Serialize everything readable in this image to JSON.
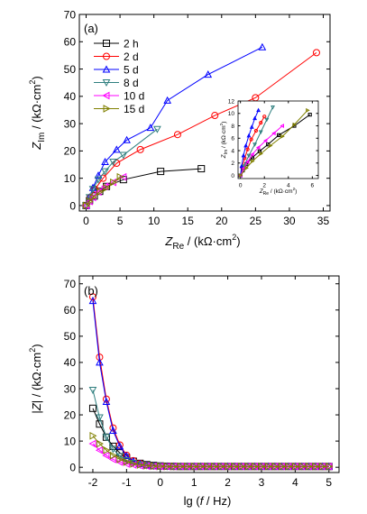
{
  "chart_data": [
    {
      "type": "scatter",
      "panel_label": "(a)",
      "xlabel": {
        "main": "Z",
        "sub": "Re",
        "unit": " / (kΩ·cm",
        "sup": "2",
        "close": ")"
      },
      "ylabel": {
        "main": "Z",
        "sub": "Im",
        "unit": " / (kΩ·cm",
        "sup": "2",
        "close": ")"
      },
      "xlim": [
        -1,
        36
      ],
      "ylim": [
        -2,
        70
      ],
      "xticks": [
        0,
        5,
        10,
        15,
        20,
        25,
        30,
        35
      ],
      "yticks": [
        0,
        10,
        20,
        30,
        40,
        50,
        60,
        70
      ],
      "legend_position": "top-left",
      "series": [
        {
          "name": "2 h",
          "color": "#000000",
          "marker": "square",
          "x": [
            0,
            0.5,
            1.2,
            2.0,
            3.0,
            5.5,
            11.0,
            17.0
          ],
          "y": [
            0,
            1.8,
            3.5,
            5.2,
            7.0,
            9.5,
            12.5,
            13.5
          ]
        },
        {
          "name": "2 d",
          "color": "#ff0000",
          "marker": "circle",
          "x": [
            0,
            0.6,
            1.3,
            2.5,
            4.5,
            8.0,
            13.5,
            19.0,
            25.0,
            34.0
          ],
          "y": [
            0,
            3.0,
            6.0,
            10.0,
            15.5,
            20.5,
            26.0,
            33.0,
            39.5,
            56.0
          ]
        },
        {
          "name": "5 d",
          "color": "#0000ff",
          "marker": "triangle-up",
          "x": [
            0,
            0.5,
            1.0,
            1.8,
            2.8,
            4.5,
            6.0,
            9.5,
            12.0,
            18.0,
            26.0
          ],
          "y": [
            0,
            3.0,
            6.5,
            11.0,
            16.0,
            20.5,
            24.0,
            28.5,
            38.5,
            48.0,
            58.0
          ]
        },
        {
          "name": "8 d",
          "color": "#2f7f7f",
          "marker": "triangle-down",
          "x": [
            0,
            0.5,
            1.0,
            1.8,
            2.8,
            4.0,
            5.5,
            10.5
          ],
          "y": [
            0,
            3.0,
            6.0,
            9.5,
            12.5,
            16.0,
            18.5,
            28.0
          ]
        },
        {
          "name": "10 d",
          "color": "#ff00ff",
          "marker": "triangle-left",
          "x": [
            0,
            0.5,
            1.0,
            1.8,
            2.8,
            4.0,
            5.5
          ],
          "y": [
            0,
            1.5,
            3.0,
            5.0,
            7.0,
            8.5,
            10.5
          ]
        },
        {
          "name": "15 d",
          "color": "#808000",
          "marker": "triangle-right",
          "x": [
            0,
            0.5,
            1.0,
            2.0,
            3.0,
            4.0,
            5.0
          ],
          "y": [
            0,
            1.5,
            3.0,
            5.0,
            6.5,
            8.5,
            10.5
          ]
        }
      ],
      "inset": {
        "xlabel": {
          "main": "Z",
          "sub": "Re",
          "unit": " / (kΩ·cm",
          "sup": "2",
          "close": ")"
        },
        "ylabel": {
          "main": "Z",
          "sub": "Im",
          "unit": " / (kΩ·cm",
          "sup": "2",
          "close": ")"
        },
        "xlim": [
          -0.2,
          6.5
        ],
        "ylim": [
          -0.5,
          12
        ],
        "xticks": [
          0,
          2,
          4,
          6
        ],
        "yticks": [
          0,
          2,
          4,
          6,
          8,
          10,
          12
        ],
        "series": [
          {
            "color": "#000000",
            "marker": "square",
            "x": [
              0,
              0.2,
              0.5,
              1.0,
              1.6,
              2.3,
              3.2,
              4.5,
              5.8
            ],
            "y": [
              0,
              0.8,
              1.8,
              2.9,
              3.9,
              5.0,
              6.5,
              8.0,
              9.8
            ]
          },
          {
            "color": "#ff0000",
            "marker": "circle",
            "x": [
              0,
              0.15,
              0.35,
              0.6,
              0.9,
              1.3,
              1.7,
              2.0
            ],
            "y": [
              0,
              1.2,
              2.8,
              4.2,
              5.8,
              7.2,
              8.5,
              9.5
            ]
          },
          {
            "color": "#0000ff",
            "marker": "triangle-up",
            "x": [
              0,
              0.1,
              0.25,
              0.45,
              0.7,
              0.95,
              1.2,
              1.5
            ],
            "y": [
              0,
              1.5,
              3.2,
              4.8,
              6.4,
              7.8,
              9.2,
              10.5
            ]
          },
          {
            "color": "#2f7f7f",
            "marker": "triangle-down",
            "x": [
              0,
              0.3,
              0.7,
              1.2,
              1.7,
              2.2,
              2.7
            ],
            "y": [
              0,
              1.5,
              3.2,
              5.0,
              7.0,
              9.0,
              11.0
            ]
          },
          {
            "color": "#ff00ff",
            "marker": "triangle-left",
            "x": [
              0,
              0.3,
              0.6,
              1.0,
              1.5,
              2.1,
              2.8,
              3.5
            ],
            "y": [
              0,
              1.2,
              2.2,
              3.4,
              4.5,
              5.6,
              6.8,
              8.0
            ]
          },
          {
            "color": "#808000",
            "marker": "triangle-right",
            "x": [
              0,
              0.5,
              1.0,
              1.7,
              2.5,
              3.5,
              4.5,
              5.6
            ],
            "y": [
              0,
              1.2,
              2.3,
              3.5,
              4.8,
              6.3,
              8.2,
              10.5
            ]
          }
        ]
      }
    },
    {
      "type": "line",
      "panel_label": "(b)",
      "xlabel": {
        "pre": "lg (",
        "ital": "f",
        "post": " / Hz)"
      },
      "ylabel": {
        "pre": "|",
        "ital": "Z",
        "post": "| / (kΩ·cm",
        "sup": "2",
        "close": ")"
      },
      "xlim": [
        -2.4,
        5.3
      ],
      "ylim": [
        -2,
        73
      ],
      "xticks": [
        -2,
        -1,
        0,
        1,
        2,
        3,
        4,
        5
      ],
      "yticks": [
        0,
        10,
        20,
        30,
        40,
        50,
        60,
        70
      ],
      "x": [
        -2.0,
        -1.8,
        -1.6,
        -1.4,
        -1.2,
        -1.0,
        -0.8,
        -0.6,
        -0.4,
        -0.2,
        0.0,
        0.2,
        0.4,
        0.6,
        0.8,
        1.0,
        1.2,
        1.4,
        1.6,
        1.8,
        2.0,
        2.2,
        2.4,
        2.6,
        2.8,
        3.0,
        3.2,
        3.4,
        3.6,
        3.8,
        4.0,
        4.2,
        4.4,
        4.6,
        4.8,
        5.0
      ],
      "series": [
        {
          "name": "2 h",
          "color": "#000000",
          "marker": "square",
          "values": [
            22.5,
            16.5,
            11.5,
            8.0,
            5.5,
            3.6,
            2.3,
            1.5,
            1.0,
            0.7,
            0.5,
            0.4,
            0.35,
            0.3,
            0.3,
            0.3,
            0.3,
            0.3,
            0.3,
            0.3,
            0.3,
            0.3,
            0.3,
            0.3,
            0.3,
            0.3,
            0.3,
            0.3,
            0.3,
            0.3,
            0.3,
            0.3,
            0.3,
            0.3,
            0.3,
            0.3
          ]
        },
        {
          "name": "2 d",
          "color": "#ff0000",
          "marker": "circle",
          "values": [
            65.0,
            42.0,
            26.0,
            15.0,
            8.5,
            4.6,
            2.5,
            1.4,
            0.8,
            0.5,
            0.4,
            0.35,
            0.3,
            0.3,
            0.3,
            0.3,
            0.3,
            0.3,
            0.3,
            0.3,
            0.3,
            0.3,
            0.3,
            0.3,
            0.3,
            0.3,
            0.3,
            0.3,
            0.3,
            0.3,
            0.3,
            0.3,
            0.3,
            0.3,
            0.3,
            0.3
          ]
        },
        {
          "name": "5 d",
          "color": "#0000ff",
          "marker": "triangle-up",
          "values": [
            63.5,
            40.0,
            25.0,
            14.0,
            8.0,
            4.3,
            2.3,
            1.3,
            0.8,
            0.5,
            0.4,
            0.35,
            0.3,
            0.3,
            0.3,
            0.3,
            0.3,
            0.3,
            0.3,
            0.3,
            0.3,
            0.3,
            0.3,
            0.3,
            0.3,
            0.3,
            0.3,
            0.3,
            0.3,
            0.3,
            0.3,
            0.3,
            0.3,
            0.3,
            0.3,
            0.3
          ]
        },
        {
          "name": "8 d",
          "color": "#2f7f7f",
          "marker": "triangle-down",
          "values": [
            29.5,
            19.0,
            11.5,
            7.0,
            4.2,
            2.6,
            1.6,
            1.0,
            0.7,
            0.5,
            0.4,
            0.35,
            0.3,
            0.3,
            0.3,
            0.3,
            0.3,
            0.3,
            0.3,
            0.3,
            0.3,
            0.3,
            0.3,
            0.3,
            0.3,
            0.3,
            0.3,
            0.3,
            0.3,
            0.3,
            0.3,
            0.3,
            0.3,
            0.3,
            0.3,
            0.3
          ]
        },
        {
          "name": "10 d",
          "color": "#ff00ff",
          "marker": "triangle-left",
          "values": [
            9.0,
            6.5,
            4.5,
            3.0,
            2.0,
            1.3,
            0.9,
            0.6,
            0.45,
            0.35,
            0.3,
            0.3,
            0.3,
            0.3,
            0.3,
            0.3,
            0.3,
            0.3,
            0.3,
            0.3,
            0.3,
            0.3,
            0.3,
            0.3,
            0.3,
            0.3,
            0.3,
            0.3,
            0.3,
            0.3,
            0.3,
            0.3,
            0.3,
            0.3,
            0.3,
            0.3
          ]
        },
        {
          "name": "15 d",
          "color": "#808000",
          "marker": "triangle-right",
          "values": [
            12.0,
            9.0,
            6.5,
            4.5,
            3.0,
            2.0,
            1.3,
            0.9,
            0.6,
            0.45,
            0.35,
            0.3,
            0.3,
            0.3,
            0.3,
            0.3,
            0.3,
            0.3,
            0.3,
            0.3,
            0.3,
            0.3,
            0.3,
            0.3,
            0.3,
            0.3,
            0.3,
            0.3,
            0.3,
            0.3,
            0.3,
            0.3,
            0.3,
            0.3,
            0.3,
            0.3
          ]
        }
      ]
    }
  ]
}
